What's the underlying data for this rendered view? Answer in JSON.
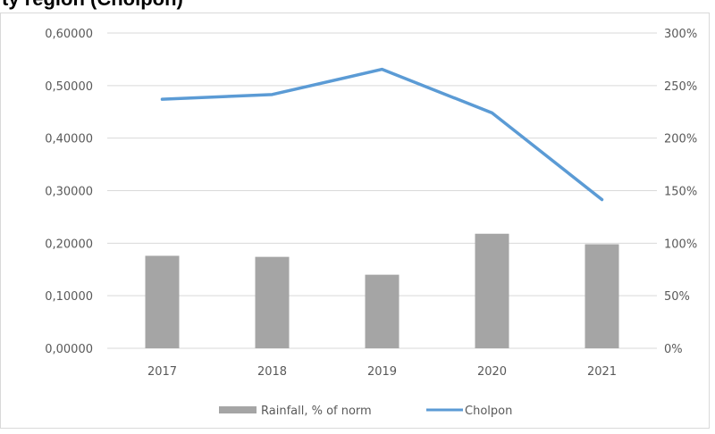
{
  "page_title": "ty region (Cholpon)",
  "chart_data": {
    "type": "bar+line",
    "categories": [
      "2017",
      "2018",
      "2019",
      "2020",
      "2021"
    ],
    "series": [
      {
        "name": "Rainfall, % of norm",
        "type": "bar",
        "axis": "right",
        "values": [
          88,
          87,
          70,
          109,
          99
        ]
      },
      {
        "name": "Cholpon",
        "type": "line",
        "axis": "left",
        "values": [
          0.474,
          0.483,
          0.531,
          0.448,
          0.283
        ]
      }
    ],
    "y_left": {
      "min": 0,
      "max": 0.6,
      "ticks": [
        "0,00000",
        "0,10000",
        "0,20000",
        "0,30000",
        "0,40000",
        "0,50000",
        "0,60000"
      ]
    },
    "y_right": {
      "min": 0,
      "max": 300,
      "ticks": [
        "0%",
        "50%",
        "100%",
        "150%",
        "200%",
        "250%",
        "300%"
      ]
    },
    "grid": true,
    "legend_position": "bottom",
    "colors": {
      "bar": "#a5a5a5",
      "line": "#5b9bd5",
      "grid": "#d9d9d9",
      "text": "#595959"
    }
  }
}
